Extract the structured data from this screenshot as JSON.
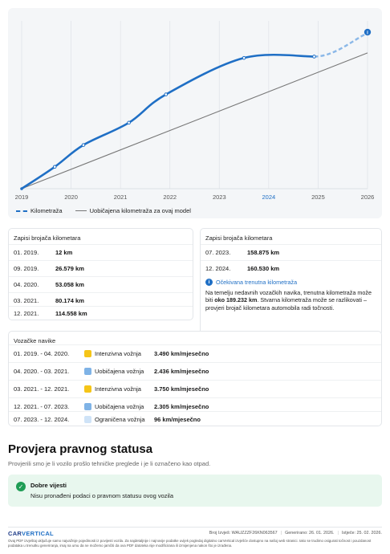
{
  "chart_data": {
    "type": "line",
    "x_ticks": [
      "2019",
      "2020",
      "2021",
      "2022",
      "2023",
      "2024",
      "2025",
      "2026"
    ],
    "highlight_tick": "2024",
    "x_range": [
      2019.0,
      2026.0
    ],
    "y_range": [
      0,
      200000
    ],
    "series": [
      {
        "name": "Kilometraža",
        "style": "dashed-blue",
        "color": "#1f6fc5",
        "points": [
          [
            2019.0,
            12
          ],
          [
            2019.67,
            26579
          ],
          [
            2020.25,
            53058
          ],
          [
            2021.17,
            80174
          ],
          [
            2021.92,
            114558
          ],
          [
            2023.5,
            158875
          ],
          [
            2024.92,
            160530
          ]
        ],
        "forecast": [
          [
            2024.92,
            160530
          ],
          [
            2026.0,
            189232
          ]
        ]
      },
      {
        "name": "Uobičajena kilometraža za ovaj model",
        "style": "solid-gray",
        "color": "#777777",
        "points": [
          [
            2019.0,
            0
          ],
          [
            2026.0,
            165000
          ]
        ]
      }
    ],
    "annotation_icon": "info-icon",
    "grid": "vertical"
  },
  "legend": {
    "mileage": "Kilometraža",
    "typical": "Uobičajena kilometraža za ovaj model"
  },
  "odometer_left": {
    "title": "Zapisi brojača kilometara",
    "rows": [
      {
        "date": "01. 2019.",
        "value": "12 km"
      },
      {
        "date": "09. 2019.",
        "value": "26.579 km"
      },
      {
        "date": "04. 2020.",
        "value": "53.058 km"
      },
      {
        "date": "03. 2021.",
        "value": "80.174 km"
      },
      {
        "date": "12. 2021.",
        "value": "114.558 km"
      }
    ]
  },
  "odometer_right": {
    "title": "Zapisi brojača kilometara",
    "rows": [
      {
        "date": "07. 2023.",
        "value": "158.875 km"
      },
      {
        "date": "12. 2024.",
        "value": "160.530 km"
      }
    ],
    "expected": {
      "heading": "Očekivana trenutna kilometraža",
      "text_1": "Na temelju nedavnih vozačkih navika, trenutna kilometraža može biti ",
      "value": "oko 189.232 km",
      "text_2": ". Stvarna kilometraža može se razlikovati – provjeri brojač kilometara automobila radi točnosti."
    }
  },
  "habits": {
    "title": "Vozačke navike",
    "rows": [
      {
        "period": "01. 2019. - 04. 2020.",
        "label": "Intenzivna vožnja",
        "rate": "3.490 km/mjesečno",
        "color": "#f5c518"
      },
      {
        "period": "04. 2020. - 03. 2021.",
        "label": "Uobičajena vožnja",
        "rate": "2.436 km/mjesečno",
        "color": "#7fb3e6"
      },
      {
        "period": "03. 2021. - 12. 2021.",
        "label": "Intenzivna vožnja",
        "rate": "3.750 km/mjesečno",
        "color": "#f5c518"
      },
      {
        "period": "12. 2021. - 07. 2023.",
        "label": "Uobičajena vožnja",
        "rate": "2.305 km/mjesečno",
        "color": "#7fb3e6"
      },
      {
        "period": "07. 2023. - 12. 2024.",
        "label": "Ograničena vožnja",
        "rate": "96 km/mjesečno",
        "color": "#cfe3f7"
      }
    ]
  },
  "legal": {
    "title": "Provjera pravnog statusa",
    "subtitle": "Provjerili smo je li vozilo prošlo tehničke preglede i je li označeno kao otpad.",
    "result_title": "Dobre vijesti",
    "result_text": "Nisu pronađeni podaci o pravnom statusu ovog vozila"
  },
  "footer": {
    "logo_a": "CAR",
    "logo_b": "VERTICAL",
    "report_no": "Broj Izvješ: WAUZZZF26KN063567",
    "generated": "Generirano: 26. 01. 2026.",
    "expires": "Istječe: 25. 02. 2026.",
    "disclaimer": "Ovaj PDF izvještaj uključuje samo najvažnije pojedinosti iz povijesti vozila. Za najdetaljnije i najnovije podatke uvijek pogledaj digitalno carVertical izvješće dostupno na našoj web stranici. Iako se trudimo osigurati točnost i pouzdanost podataka u trenutku generiranja, imaj na umu da ne možemo jamčiti da ova PDF datoteka nije modificirana ili izmijenjena nakon što je izrađena."
  }
}
